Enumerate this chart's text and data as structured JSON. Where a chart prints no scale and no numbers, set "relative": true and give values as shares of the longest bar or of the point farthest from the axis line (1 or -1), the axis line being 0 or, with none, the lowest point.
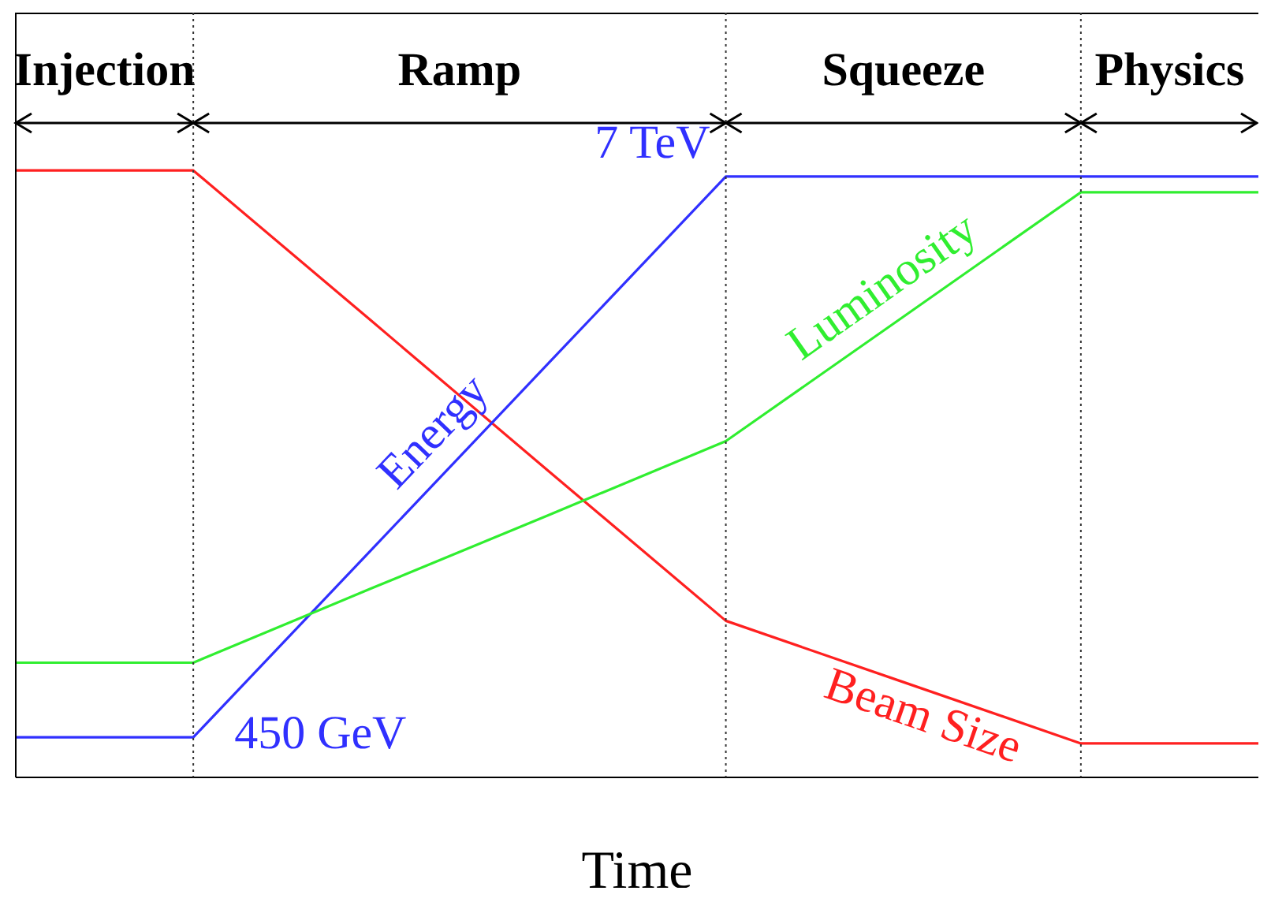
{
  "chart_data": {
    "type": "line",
    "relative": true,
    "xlabel": "Time",
    "grid": "x",
    "categories": [
      null,
      null,
      null,
      null,
      null,
      null,
      null,
      null
    ],
    "series": [
      {
        "name": "Beam Size",
        "color": "#ff2020",
        "values": [
          1,
          1,
          0.753,
          0.505,
          0.258,
          0.157,
          0.056,
          0.056
        ]
      },
      {
        "name": "Energy",
        "color": "#3030ff",
        "values": [
          0.066,
          0.066,
          0.374,
          0.682,
          0.99,
          0.99,
          0.99,
          0.99
        ]
      },
      {
        "name": "Luminosity",
        "color": "#30ee30",
        "values": [
          0.189,
          0.189,
          0.311,
          0.432,
          0.554,
          0.759,
          0.964,
          0.964
        ]
      }
    ],
    "annotations": [
      "7 TeV",
      "450 GeV",
      "Injection",
      "Ramp",
      "Squeeze",
      "Physics"
    ]
  }
}
